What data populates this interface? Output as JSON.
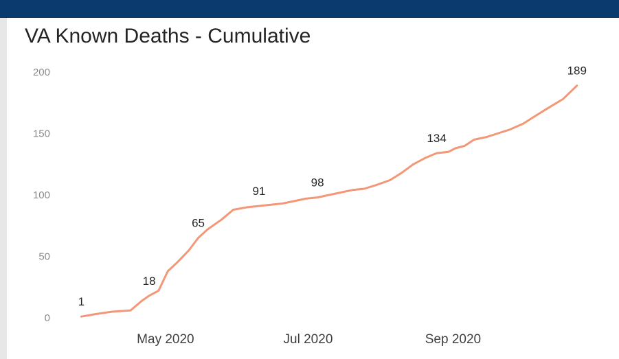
{
  "title": "VA Known Deaths - Cumulative",
  "colors": {
    "header": "#0b3a6e",
    "line": "#f29777"
  },
  "chart_data": {
    "type": "line",
    "title": "VA Known Deaths - Cumulative",
    "xlabel": "",
    "ylabel": "",
    "ylim": [
      0,
      200
    ],
    "xlim": [
      "2020-03-25",
      "2020-10-27"
    ],
    "y_ticks": [
      "0",
      "50",
      "100",
      "150",
      "200"
    ],
    "x_ticks": [
      {
        "date": "2020-05-01",
        "label": "May 2020"
      },
      {
        "date": "2020-07-01",
        "label": "Jul 2020"
      },
      {
        "date": "2020-09-01",
        "label": "Sep 2020"
      }
    ],
    "grid": false,
    "legend": "none",
    "series": [
      {
        "x": [
          "2020-03-26",
          "2020-04-01",
          "2020-04-08",
          "2020-04-16",
          "2020-04-21",
          "2020-04-24",
          "2020-04-28",
          "2020-05-02",
          "2020-05-06",
          "2020-05-11",
          "2020-05-15",
          "2020-05-19",
          "2020-05-25",
          "2020-05-30",
          "2020-06-05",
          "2020-06-10",
          "2020-06-15",
          "2020-06-20",
          "2020-06-25",
          "2020-06-30",
          "2020-07-05",
          "2020-07-10",
          "2020-07-15",
          "2020-07-20",
          "2020-07-25",
          "2020-07-30",
          "2020-08-05",
          "2020-08-10",
          "2020-08-15",
          "2020-08-20",
          "2020-08-25",
          "2020-08-30",
          "2020-09-02",
          "2020-09-06",
          "2020-09-10",
          "2020-09-15",
          "2020-09-20",
          "2020-09-25",
          "2020-10-01",
          "2020-10-06",
          "2020-10-11",
          "2020-10-18",
          "2020-10-24"
        ],
        "values": [
          1,
          3,
          5,
          6,
          14,
          18,
          22,
          38,
          45,
          55,
          65,
          72,
          80,
          88,
          90,
          91,
          92,
          93,
          95,
          97,
          98,
          100,
          102,
          104,
          105,
          108,
          112,
          118,
          125,
          130,
          134,
          135,
          138,
          140,
          145,
          147,
          150,
          153,
          158,
          164,
          170,
          178,
          189
        ]
      }
    ],
    "data_labels": [
      {
        "date": "2020-03-26",
        "value": 1,
        "text": "1"
      },
      {
        "date": "2020-04-24",
        "value": 18,
        "text": "18"
      },
      {
        "date": "2020-05-15",
        "value": 65,
        "text": "65"
      },
      {
        "date": "2020-06-10",
        "value": 91,
        "text": "91"
      },
      {
        "date": "2020-07-05",
        "value": 98,
        "text": "98"
      },
      {
        "date": "2020-08-25",
        "value": 134,
        "text": "134"
      },
      {
        "date": "2020-10-24",
        "value": 189,
        "text": "189"
      }
    ]
  }
}
